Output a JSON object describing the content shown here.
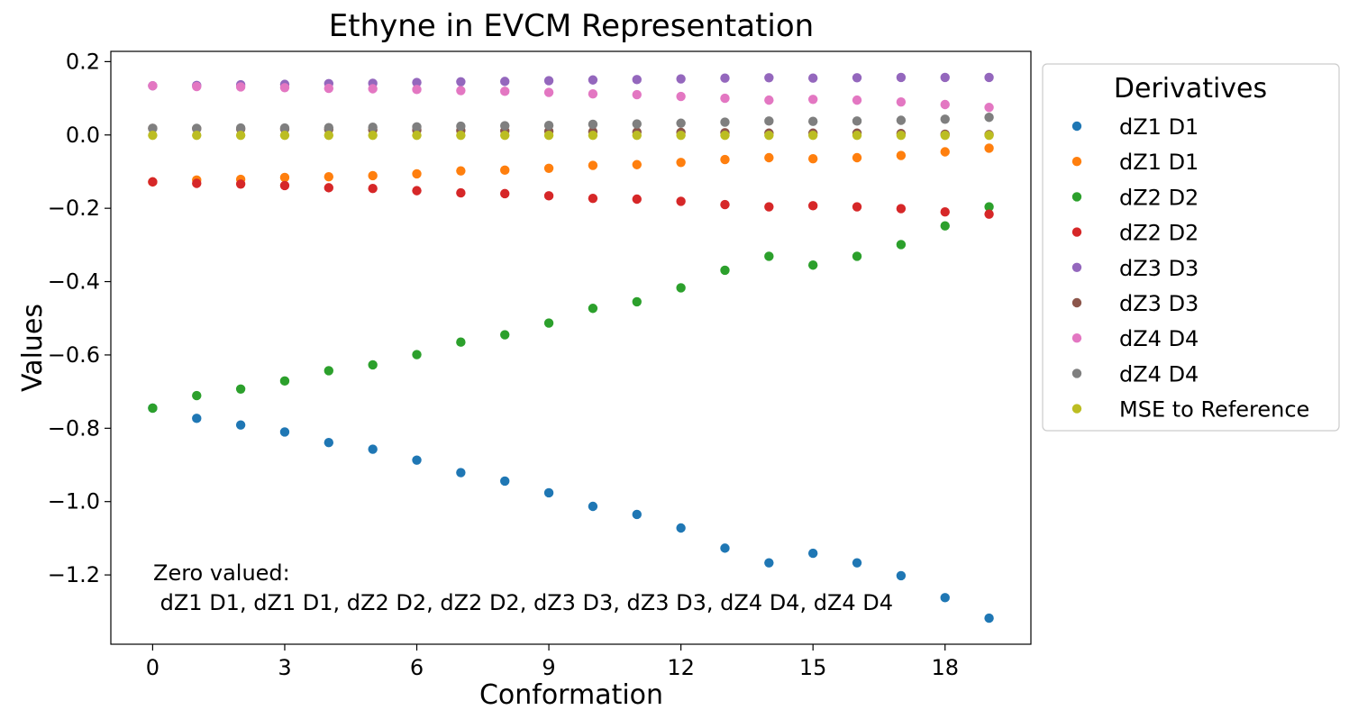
{
  "chart_data": {
    "type": "scatter",
    "title": "Ethyne in EVCM Representation",
    "xlabel": "Conformation",
    "ylabel": "Values",
    "xlim": [
      -0.95,
      19.95
    ],
    "ylim": [
      -1.389,
      0.228
    ],
    "xticks": [
      0,
      3,
      6,
      9,
      12,
      15,
      18
    ],
    "yticks": [
      0.2,
      0.0,
      -0.2,
      -0.4,
      -0.6,
      -0.8,
      -1.0,
      -1.2
    ],
    "ytick_labels": [
      "0.2",
      "0.0",
      "−0.2",
      "−0.4",
      "−0.6",
      "−0.8",
      "−1.0",
      "−1.2"
    ],
    "legend_title": "Derivatives",
    "legend_position": "outside-right",
    "annotation_line1": "Zero valued:",
    "annotation_line2": " dZ1 D1, dZ1 D1, dZ2 D2, dZ2 D2, dZ3 D3, dZ3 D3, dZ4 D4, dZ4 D4",
    "x": [
      0,
      1,
      2,
      3,
      4,
      5,
      6,
      7,
      8,
      9,
      10,
      11,
      12,
      13,
      14,
      15,
      16,
      17,
      18,
      19
    ],
    "series": [
      {
        "name": "dZ1 D1",
        "color": "#1f77b4",
        "values": [
          -0.745,
          -0.773,
          -0.791,
          -0.81,
          -0.839,
          -0.857,
          -0.887,
          -0.921,
          -0.944,
          -0.976,
          -1.013,
          -1.035,
          -1.072,
          -1.127,
          -1.167,
          -1.141,
          -1.167,
          -1.202,
          -1.262,
          -1.318
        ]
      },
      {
        "name": "dZ1 D1",
        "color": "#ff7f0e",
        "values": [
          -0.128,
          -0.123,
          -0.121,
          -0.116,
          -0.114,
          -0.111,
          -0.106,
          -0.098,
          -0.096,
          -0.091,
          -0.083,
          -0.081,
          -0.075,
          -0.067,
          -0.062,
          -0.065,
          -0.062,
          -0.056,
          -0.046,
          -0.036
        ]
      },
      {
        "name": "dZ2 D2",
        "color": "#2ca02c",
        "values": [
          -0.745,
          -0.711,
          -0.693,
          -0.671,
          -0.643,
          -0.627,
          -0.599,
          -0.565,
          -0.545,
          -0.513,
          -0.473,
          -0.455,
          -0.417,
          -0.369,
          -0.331,
          -0.355,
          -0.331,
          -0.299,
          -0.248,
          -0.196
        ]
      },
      {
        "name": "dZ2 D2",
        "color": "#d62728",
        "values": [
          -0.128,
          -0.132,
          -0.134,
          -0.138,
          -0.144,
          -0.146,
          -0.152,
          -0.158,
          -0.16,
          -0.166,
          -0.173,
          -0.175,
          -0.181,
          -0.19,
          -0.196,
          -0.193,
          -0.196,
          -0.201,
          -0.21,
          -0.216
        ]
      },
      {
        "name": "dZ3 D3",
        "color": "#9467bd",
        "values": [
          0.134,
          0.135,
          0.137,
          0.138,
          0.14,
          0.141,
          0.143,
          0.145,
          0.146,
          0.148,
          0.15,
          0.151,
          0.153,
          0.155,
          0.156,
          0.155,
          0.156,
          0.157,
          0.157,
          0.157
        ]
      },
      {
        "name": "dZ3 D3",
        "color": "#8c564b",
        "values": [
          0.018,
          0.017,
          0.016,
          0.016,
          0.015,
          0.014,
          0.013,
          0.012,
          0.011,
          0.01,
          0.009,
          0.008,
          0.007,
          0.006,
          0.005,
          0.005,
          0.005,
          0.004,
          0.002,
          0.001
        ]
      },
      {
        "name": "dZ4 D4",
        "color": "#e377c2",
        "values": [
          0.134,
          0.132,
          0.131,
          0.129,
          0.127,
          0.126,
          0.124,
          0.121,
          0.119,
          0.116,
          0.112,
          0.11,
          0.105,
          0.1,
          0.095,
          0.097,
          0.095,
          0.09,
          0.083,
          0.075
        ]
      },
      {
        "name": "dZ4 D4",
        "color": "#7f7f7f",
        "values": [
          0.018,
          0.018,
          0.019,
          0.019,
          0.02,
          0.021,
          0.022,
          0.024,
          0.025,
          0.026,
          0.029,
          0.03,
          0.032,
          0.035,
          0.038,
          0.037,
          0.038,
          0.04,
          0.043,
          0.048
        ]
      },
      {
        "name": "MSE to Reference",
        "color": "#bcbd22",
        "values": [
          -0.001,
          -0.001,
          -0.001,
          -0.001,
          -0.001,
          -0.001,
          -0.001,
          -0.001,
          -0.001,
          -0.001,
          -0.001,
          -0.001,
          -0.001,
          -0.001,
          -0.001,
          -0.001,
          -0.001,
          -0.001,
          -0.001,
          -0.001
        ]
      }
    ]
  }
}
